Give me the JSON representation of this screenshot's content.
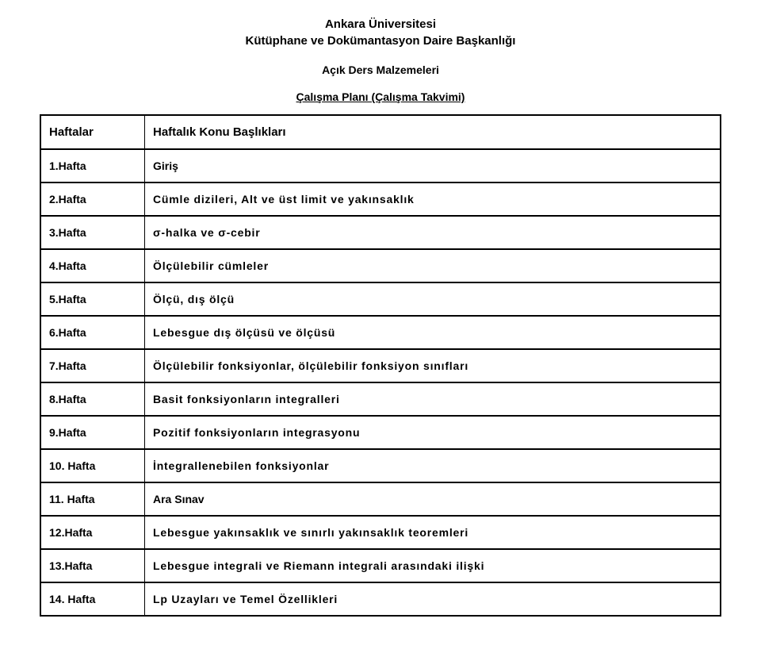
{
  "header": {
    "line1": "Ankara Üniversitesi",
    "line2": "Kütüphane ve Dokümantasyon Daire Başkanlığı",
    "sub": "Açık Ders Malzemeleri",
    "plan_title": "Çalışma Planı (Çalışma Takvimi)"
  },
  "table": {
    "col_week_header": "Haftalar",
    "col_topic_header": "Haftalık Konu Başlıkları",
    "rows": [
      {
        "week": "1.Hafta",
        "topic": "Giriş",
        "style": "tight"
      },
      {
        "week": "2.Hafta",
        "topic": "Cümle dizileri, Alt ve üst limit ve yakınsaklık",
        "style": "spaced"
      },
      {
        "week": "3.Hafta",
        "topic": "σ-halka ve σ-cebir",
        "style": "spaced"
      },
      {
        "week": "4.Hafta",
        "topic": "Ölçülebilir cümleler",
        "style": "spaced"
      },
      {
        "week": "5.Hafta",
        "topic": "Ölçü, dış ölçü",
        "style": "spaced"
      },
      {
        "week": "6.Hafta",
        "topic": "Lebesgue dış ölçüsü ve ölçüsü",
        "style": "spaced"
      },
      {
        "week": "7.Hafta",
        "topic": "Ölçülebilir fonksiyonlar, ölçülebilir fonksiyon sınıfları",
        "style": "spaced"
      },
      {
        "week": "8.Hafta",
        "topic": "Basit fonksiyonların integralleri",
        "style": "spaced"
      },
      {
        "week": "9.Hafta",
        "topic": "Pozitif fonksiyonların integrasyonu",
        "style": "spaced"
      },
      {
        "week": "10. Hafta",
        "topic": "İntegrallenebilen fonksiyonlar",
        "style": "spaced"
      },
      {
        "week": "11. Hafta",
        "topic": "Ara Sınav",
        "style": "tight"
      },
      {
        "week": "12.Hafta",
        "topic": "Lebesgue yakınsaklık ve sınırlı yakınsaklık teoremleri",
        "style": "spaced"
      },
      {
        "week": "13.Hafta",
        "topic": "Lebesgue integrali ve Riemann integrali arasındaki ilişki",
        "style": "spaced"
      },
      {
        "week": "14. Hafta",
        "topic": "Lp Uzayları ve Temel Özellikleri",
        "style": "spaced"
      }
    ]
  }
}
